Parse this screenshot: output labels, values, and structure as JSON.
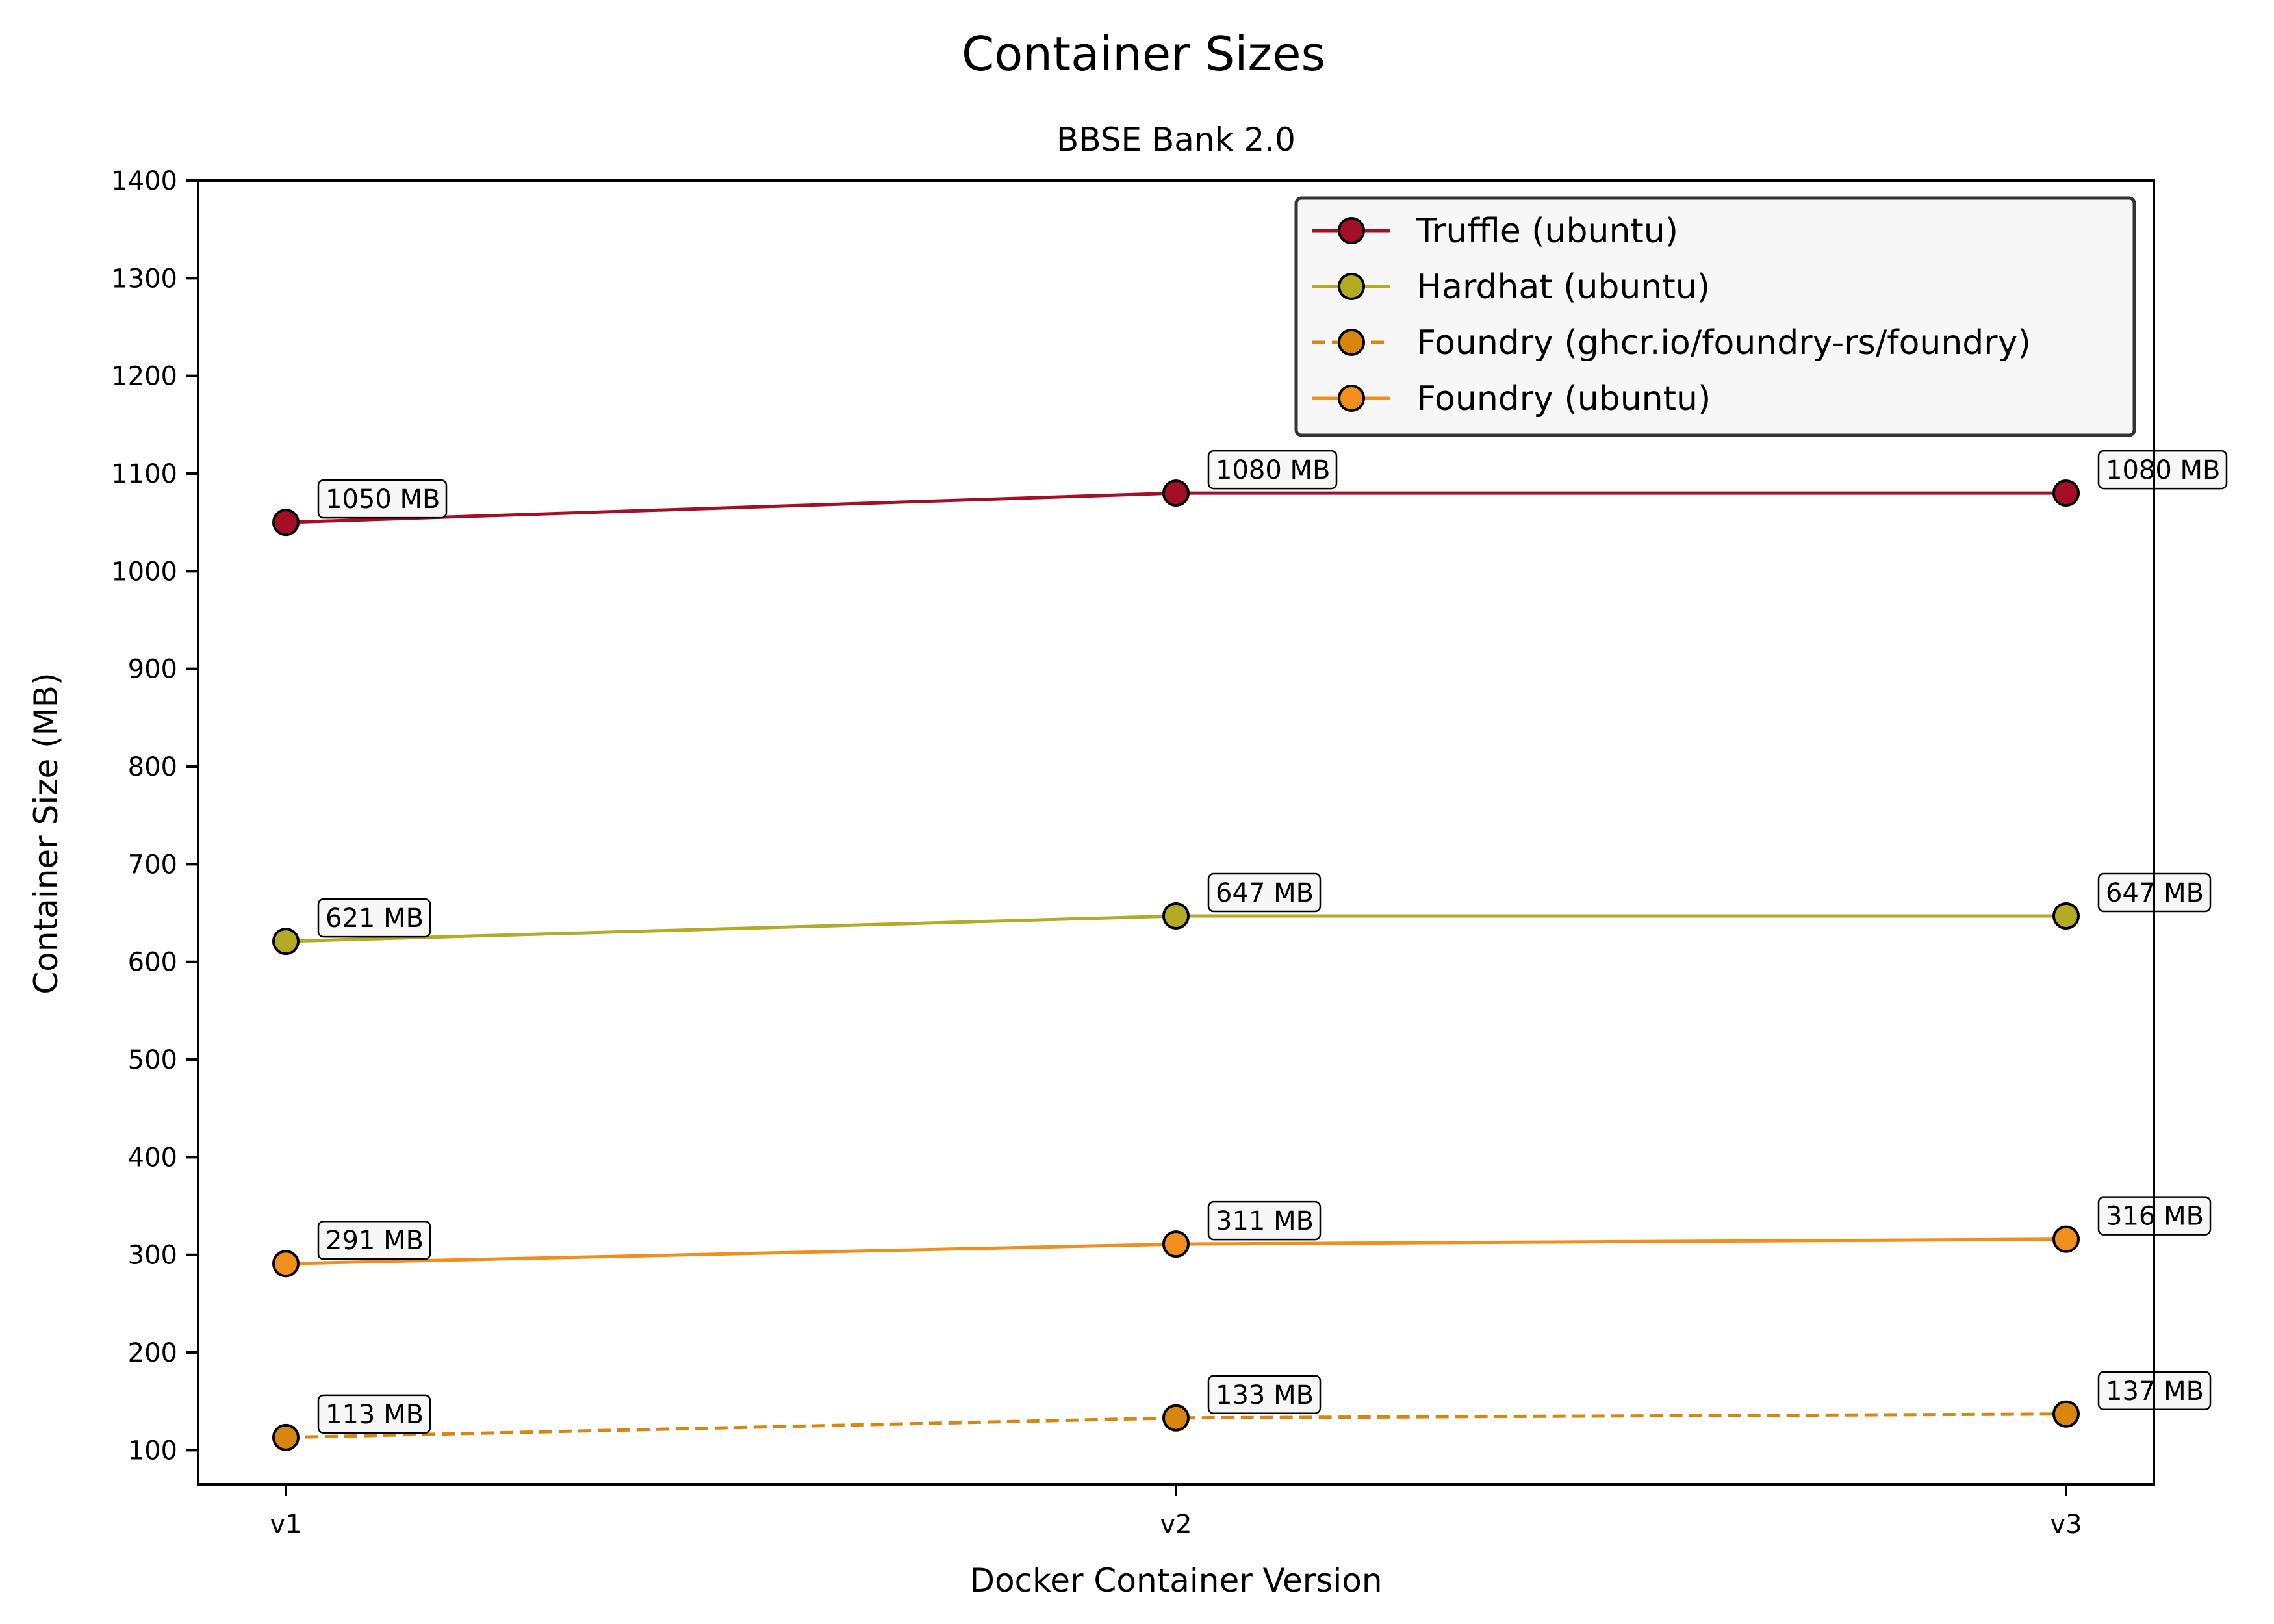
{
  "chart_data": {
    "type": "line",
    "title": "Container Sizes",
    "subtitle": "BBSE Bank 2.0",
    "xlabel": "Docker Container Version",
    "ylabel": "Container Size (MB)",
    "categories": [
      "v1",
      "v2",
      "v3"
    ],
    "ylim": [
      65,
      1400
    ],
    "yticks": [
      100,
      200,
      300,
      400,
      500,
      600,
      700,
      800,
      900,
      1000,
      1100,
      1200,
      1300,
      1400
    ],
    "grid": false,
    "legend_position": "top-right",
    "value_suffix": " MB",
    "series": [
      {
        "name": "Truffle (ubuntu)",
        "values": [
          1050,
          1080,
          1080
        ],
        "color": "#a50f25",
        "line_style": "solid"
      },
      {
        "name": "Hardhat (ubuntu)",
        "values": [
          621,
          647,
          647
        ],
        "color": "#b3ab23",
        "line_style": "solid"
      },
      {
        "name": "Foundry (ghcr.io/foundry-rs/foundry)",
        "values": [
          113,
          133,
          137
        ],
        "color": "#d8860f",
        "line_style": "dashed"
      },
      {
        "name": "Foundry (ubuntu)",
        "values": [
          291,
          311,
          316
        ],
        "color": "#f28e1c",
        "line_style": "solid"
      }
    ]
  }
}
